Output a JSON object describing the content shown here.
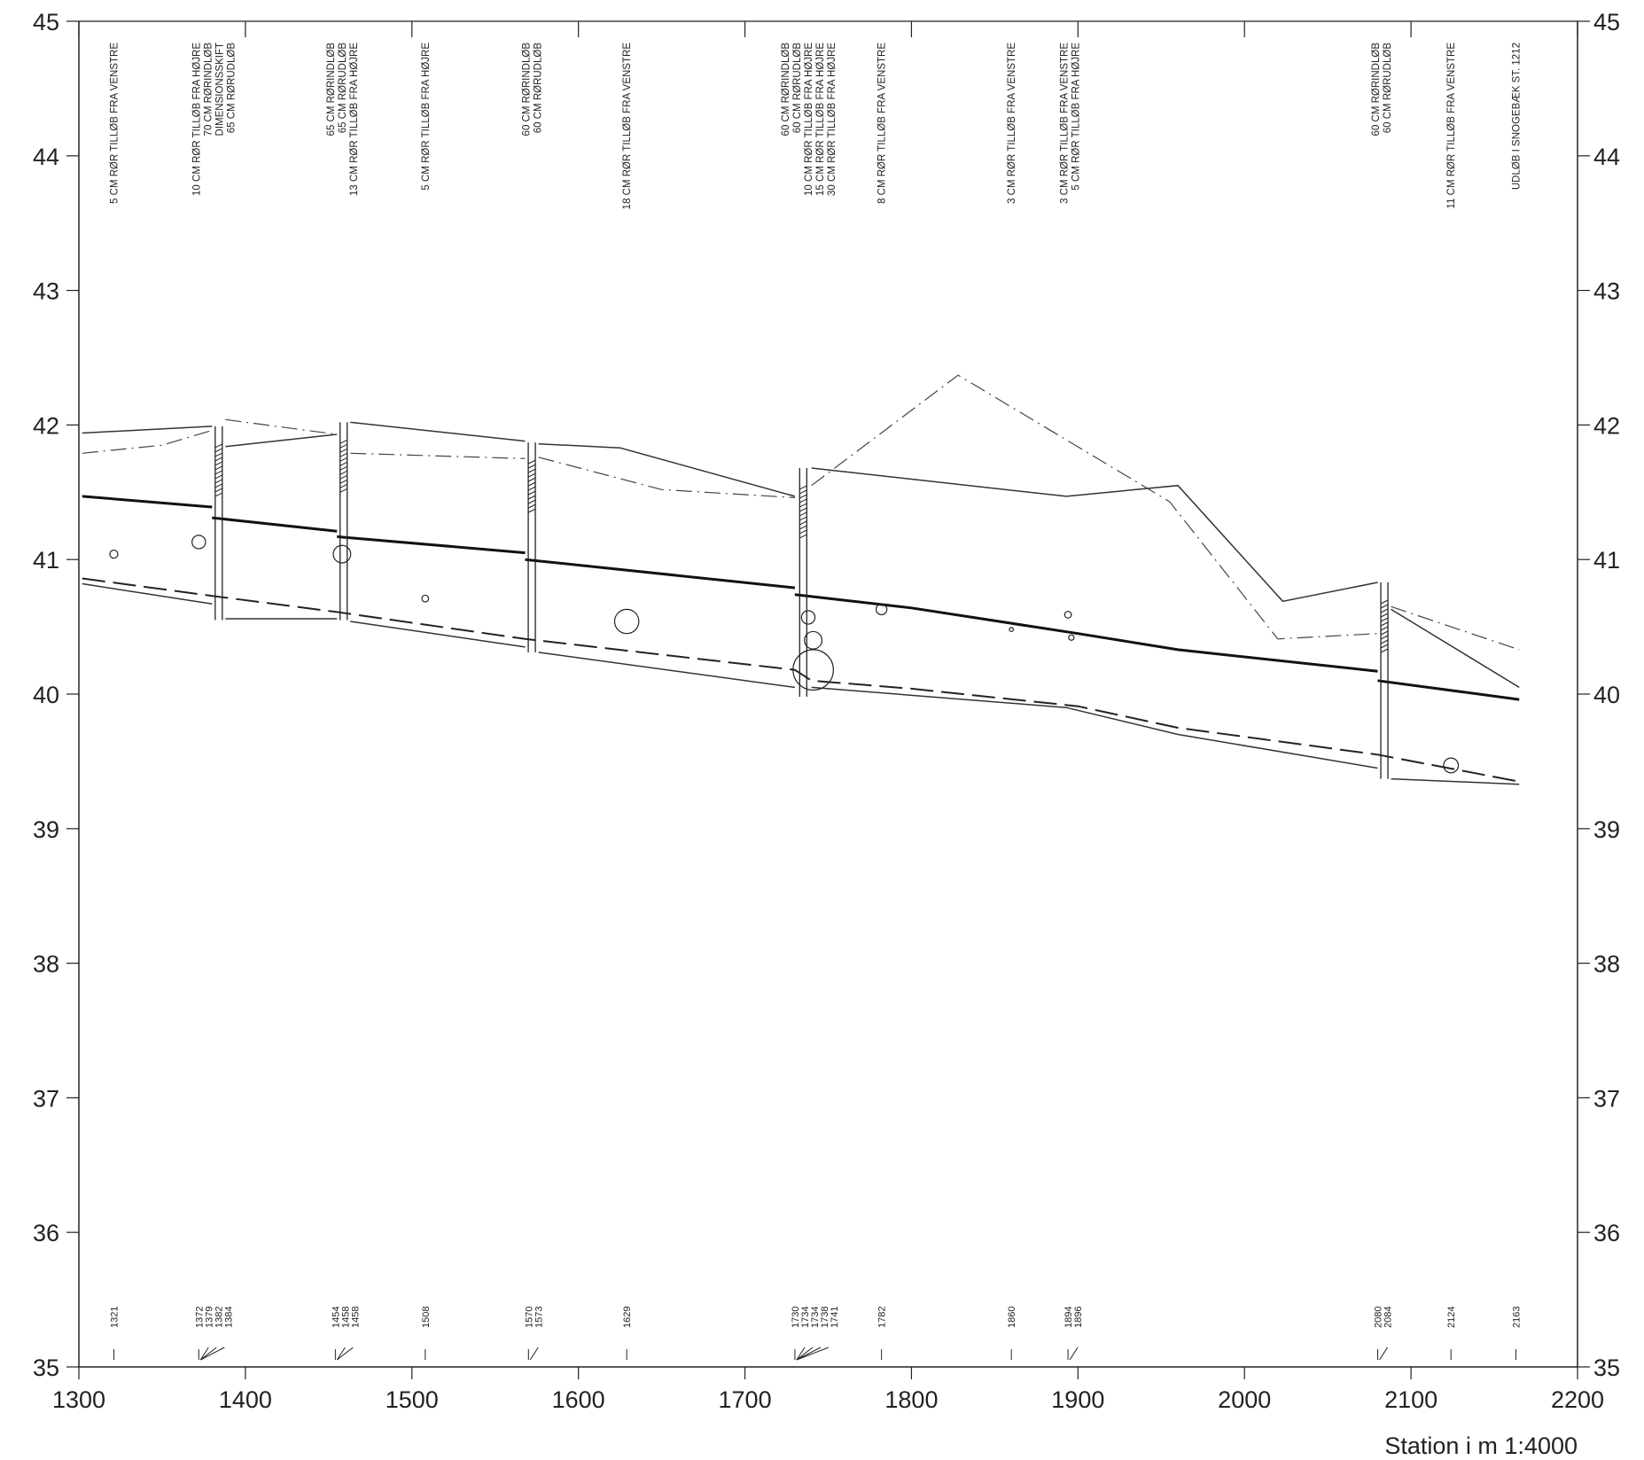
{
  "chart_data": {
    "type": "line",
    "x_unit_caption": "Station i m  1:4000",
    "xlim": [
      1300,
      2200
    ],
    "ylim": [
      35,
      45
    ],
    "x_ticks": [
      1300,
      1400,
      1500,
      1600,
      1700,
      1800,
      1900,
      2000,
      2100,
      2200
    ],
    "y_ticks": [
      35,
      36,
      37,
      38,
      39,
      40,
      41,
      42,
      43,
      44,
      45
    ],
    "series": [
      {
        "style": "thin-solid",
        "segments": [
          [
            [
              1302,
              41.94
            ],
            [
              1380,
              41.99
            ]
          ],
          [
            [
              1388,
              41.84
            ],
            [
              1455,
              41.93
            ]
          ],
          [
            [
              1463,
              42.02
            ],
            [
              1568,
              41.88
            ]
          ],
          [
            [
              1576,
              41.86
            ],
            [
              1625,
              41.83
            ],
            [
              1730,
              41.47
            ]
          ],
          [
            [
              1740,
              41.68
            ],
            [
              1893,
              41.47
            ],
            [
              1960,
              41.55
            ],
            [
              2023,
              40.69
            ],
            [
              2080,
              40.83
            ]
          ],
          [
            [
              2088,
              40.63
            ],
            [
              2165,
              40.05
            ]
          ]
        ]
      },
      {
        "style": "dash-dot",
        "segments": [
          [
            [
              1302,
              41.79
            ],
            [
              1350,
              41.85
            ],
            [
              1380,
              41.96
            ]
          ],
          [
            [
              1388,
              42.04
            ],
            [
              1455,
              41.93
            ]
          ],
          [
            [
              1463,
              41.79
            ],
            [
              1568,
              41.75
            ]
          ],
          [
            [
              1576,
              41.76
            ],
            [
              1650,
              41.52
            ],
            [
              1730,
              41.46
            ]
          ],
          [
            [
              1740,
              41.55
            ],
            [
              1828,
              42.37
            ],
            [
              1955,
              41.43
            ],
            [
              2020,
              40.41
            ],
            [
              2080,
              40.45
            ]
          ],
          [
            [
              2088,
              40.65
            ],
            [
              2165,
              40.33
            ]
          ]
        ]
      },
      {
        "style": "thick-solid",
        "segments": [
          [
            [
              1302,
              41.47
            ],
            [
              1380,
              41.39
            ]
          ],
          [
            [
              1380,
              41.31
            ],
            [
              1455,
              41.21
            ]
          ],
          [
            [
              1455,
              41.17
            ],
            [
              1568,
              41.05
            ]
          ],
          [
            [
              1568,
              41.0
            ],
            [
              1730,
              40.79
            ]
          ],
          [
            [
              1730,
              40.74
            ],
            [
              1800,
              40.64
            ],
            [
              1900,
              40.45
            ],
            [
              1960,
              40.33
            ],
            [
              2080,
              40.17
            ]
          ],
          [
            [
              2080,
              40.1
            ],
            [
              2165,
              39.96
            ]
          ]
        ]
      },
      {
        "style": "thin-solid",
        "segments": [
          [
            [
              1302,
              40.82
            ],
            [
              1380,
              40.67
            ]
          ],
          [
            [
              1388,
              40.56
            ],
            [
              1455,
              40.56
            ]
          ],
          [
            [
              1463,
              40.54
            ],
            [
              1568,
              40.35
            ]
          ],
          [
            [
              1576,
              40.31
            ],
            [
              1730,
              40.05
            ]
          ],
          [
            [
              1740,
              40.05
            ],
            [
              1893,
              39.9
            ],
            [
              1960,
              39.7
            ],
            [
              2080,
              39.45
            ]
          ],
          [
            [
              2088,
              39.37
            ],
            [
              2165,
              39.33
            ]
          ]
        ]
      },
      {
        "style": "dashed",
        "segments": [
          [
            [
              1302,
              40.86
            ],
            [
              1380,
              40.73
            ],
            [
              1455,
              40.61
            ],
            [
              1568,
              40.41
            ],
            [
              1730,
              40.18
            ],
            [
              1740,
              40.1
            ],
            [
              1800,
              40.04
            ],
            [
              1900,
              39.91
            ],
            [
              1960,
              39.75
            ],
            [
              2080,
              39.55
            ],
            [
              2165,
              39.35
            ]
          ]
        ]
      }
    ],
    "manholes": [
      {
        "x": 1384,
        "top": 41.99,
        "bottom": 40.55
      },
      {
        "x": 1459,
        "top": 42.02,
        "bottom": 40.55
      },
      {
        "x": 1572,
        "top": 41.87,
        "bottom": 40.31
      },
      {
        "x": 1735,
        "top": 41.68,
        "bottom": 39.98
      },
      {
        "x": 2084,
        "top": 40.83,
        "bottom": 39.37
      }
    ],
    "pipe_circles": [
      {
        "x": 1321,
        "y": 41.04,
        "r": 0.03
      },
      {
        "x": 1372,
        "y": 41.13,
        "r": 0.05
      },
      {
        "x": 1458,
        "y": 41.04,
        "r": 0.065
      },
      {
        "x": 1508,
        "y": 40.71,
        "r": 0.025
      },
      {
        "x": 1629,
        "y": 40.54,
        "r": 0.09
      },
      {
        "x": 1738,
        "y": 40.57,
        "r": 0.05
      },
      {
        "x": 1741,
        "y": 40.4,
        "r": 0.065
      },
      {
        "x": 1741,
        "y": 40.18,
        "r": 0.15
      },
      {
        "x": 1782,
        "y": 40.63,
        "r": 0.04
      },
      {
        "x": 1860,
        "y": 40.48,
        "r": 0.015
      },
      {
        "x": 1894,
        "y": 40.59,
        "r": 0.025
      },
      {
        "x": 1896,
        "y": 40.42,
        "r": 0.02
      },
      {
        "x": 2124,
        "y": 39.47,
        "r": 0.055
      }
    ],
    "station_markers": [
      {
        "x": 1321,
        "labels": [
          "1321"
        ]
      },
      {
        "x": 1372,
        "labels": [
          "1372",
          "1379",
          "1382",
          "1384"
        ]
      },
      {
        "x": 1454,
        "labels": [
          "1454",
          "1458",
          "1458"
        ]
      },
      {
        "x": 1508,
        "labels": [
          "1508"
        ]
      },
      {
        "x": 1570,
        "labels": [
          "1570",
          "1573"
        ]
      },
      {
        "x": 1629,
        "labels": [
          "1629"
        ]
      },
      {
        "x": 1730,
        "labels": [
          "1730",
          "1734",
          "1734",
          "1738",
          "1741"
        ]
      },
      {
        "x": 1782,
        "labels": [
          "1782"
        ]
      },
      {
        "x": 1860,
        "labels": [
          "1860"
        ]
      },
      {
        "x": 1894,
        "labels": [
          "1894",
          "1896"
        ]
      },
      {
        "x": 2080,
        "labels": [
          "2080",
          "2084"
        ]
      },
      {
        "x": 2124,
        "labels": [
          "2124"
        ]
      },
      {
        "x": 2163,
        "labels": [
          "2163"
        ]
      }
    ],
    "annotations": [
      {
        "x": 1321,
        "lines": [
          "5 CM RØR TILLØB FRA VENSTRE"
        ]
      },
      {
        "x": 1381,
        "lines": [
          "10 CM RØR TILLØB FRA HØJRE",
          "70 CM RØRINDLØB",
          "DIMENSIONSSKIFT",
          "65 CM RØRUDLØB"
        ]
      },
      {
        "x": 1458,
        "lines": [
          "65 CM RØRINDLØB",
          "65 CM RØRUDLØB",
          "13 CM RØR TILLØB FRA HØJRE"
        ]
      },
      {
        "x": 1508,
        "lines": [
          "5 CM RØR TILLØB FRA HØJRE"
        ]
      },
      {
        "x": 1572,
        "lines": [
          "60 CM RØRINDLØB",
          "60 CM RØRUDLØB"
        ]
      },
      {
        "x": 1629,
        "lines": [
          "18 CM RØR TILLØB FRA VENSTRE"
        ]
      },
      {
        "x": 1738,
        "lines": [
          "60 CM RØRINDLØB",
          "60 CM RØRUDLØB",
          "10 CM RØR TILLØB FRA HØJRE",
          "15 CM RØR TILLØB FRA HØJRE",
          "30 CM RØR TILLØB FRA HØJRE"
        ]
      },
      {
        "x": 1782,
        "lines": [
          "8 CM RØR TILLØB FRA VENSTRE"
        ]
      },
      {
        "x": 1860,
        "lines": [
          "3 CM RØR TILLØB FRA VENSTRE"
        ]
      },
      {
        "x": 1895,
        "lines": [
          "3 CM RØR TILLØB FRA VENSTRE",
          "5 CM RØR TILLØB FRA HØJRE"
        ]
      },
      {
        "x": 2082,
        "lines": [
          "60 CM RØRINDLØB",
          "60 CM RØRUDLØB"
        ]
      },
      {
        "x": 2124,
        "lines": [
          "11 CM RØR TILLØB FRA VENSTRE"
        ]
      },
      {
        "x": 2163,
        "lines": [
          "UDLØB I SNOGEBÆK ST. 1212"
        ]
      }
    ]
  }
}
